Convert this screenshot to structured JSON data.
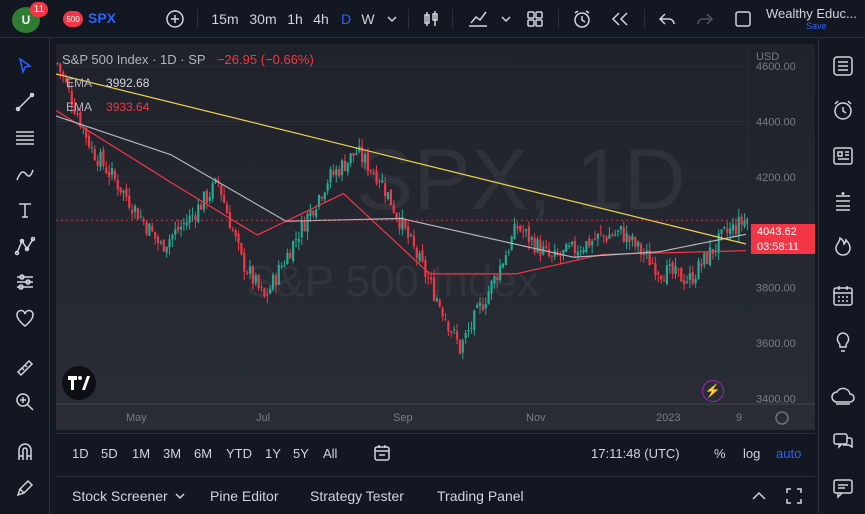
{
  "topbar": {
    "logo_badge": "11",
    "symbol_badge": "500",
    "symbol": "SPX",
    "intervals": [
      "15m",
      "30m",
      "1h",
      "4h",
      "D",
      "W"
    ],
    "selected_interval": "D",
    "account_name": "Wealthy Educ...",
    "save_label": "Save"
  },
  "chart": {
    "legend_title": "S&P 500 Index · 1D · SP",
    "change": "−26.95 (−0.66%)",
    "ema1_label": "EMA",
    "ema1_value": "3992.68",
    "ema2_label": "EMA",
    "ema2_value": "3933.64",
    "watermark_symbol": "SPX, 1D",
    "watermark_name": "S&P 500 Index",
    "currency": "USD",
    "last_price": "4043.62",
    "countdown": "03:58:11",
    "colors": {
      "up": "#22ab94",
      "down": "#f23645",
      "trend": "#f0d34a",
      "ema_fast": "#f23645",
      "ema_slow": "#b2b5be"
    }
  },
  "chart_data": {
    "type": "candlestick",
    "x_ticks": [
      "May",
      "Jul",
      "Sep",
      "Nov",
      "2023",
      "9"
    ],
    "y_ticks": [
      "4600.00",
      "4400.00",
      "4200.00",
      "3800.00",
      "3600.00",
      "3400.00"
    ],
    "ylim": [
      3380,
      4680
    ],
    "series": [
      {
        "name": "Price",
        "anchors": [
          [
            0,
            4610
          ],
          [
            12,
            4300
          ],
          [
            22,
            4160
          ],
          [
            36,
            3950
          ],
          [
            46,
            4050
          ],
          [
            56,
            4180
          ],
          [
            64,
            3900
          ],
          [
            72,
            3760
          ],
          [
            84,
            4000
          ],
          [
            94,
            4190
          ],
          [
            104,
            4290
          ],
          [
            112,
            4200
          ],
          [
            122,
            3980
          ],
          [
            134,
            3720
          ],
          [
            140,
            3580
          ],
          [
            152,
            3830
          ],
          [
            160,
            4020
          ],
          [
            172,
            3900
          ],
          [
            188,
            3980
          ],
          [
            196,
            4000
          ],
          [
            210,
            3860
          ],
          [
            220,
            3830
          ],
          [
            232,
            3990
          ],
          [
            240,
            4050
          ]
        ]
      },
      {
        "name": "EMA 1",
        "anchors": [
          [
            0,
            4420
          ],
          [
            40,
            4280
          ],
          [
            80,
            4040
          ],
          [
            120,
            4050
          ],
          [
            150,
            3980
          ],
          [
            180,
            3910
          ],
          [
            210,
            3930
          ],
          [
            240,
            3992.68
          ]
        ]
      },
      {
        "name": "EMA 2",
        "anchors": [
          [
            0,
            4440
          ],
          [
            40,
            4180
          ],
          [
            70,
            3990
          ],
          [
            100,
            4140
          ],
          [
            130,
            3850
          ],
          [
            160,
            3850
          ],
          [
            190,
            3920
          ],
          [
            240,
            3933.64
          ]
        ]
      }
    ]
  },
  "ranges": [
    "1D",
    "5D",
    "1M",
    "3M",
    "6M",
    "YTD",
    "1Y",
    "5Y",
    "All"
  ],
  "status": {
    "clock": "17:11:48 (UTC)",
    "percent": "%",
    "log": "log",
    "auto": "auto"
  },
  "bottom_tabs": [
    "Stock Screener",
    "Pine Editor",
    "Strategy Tester",
    "Trading Panel"
  ]
}
